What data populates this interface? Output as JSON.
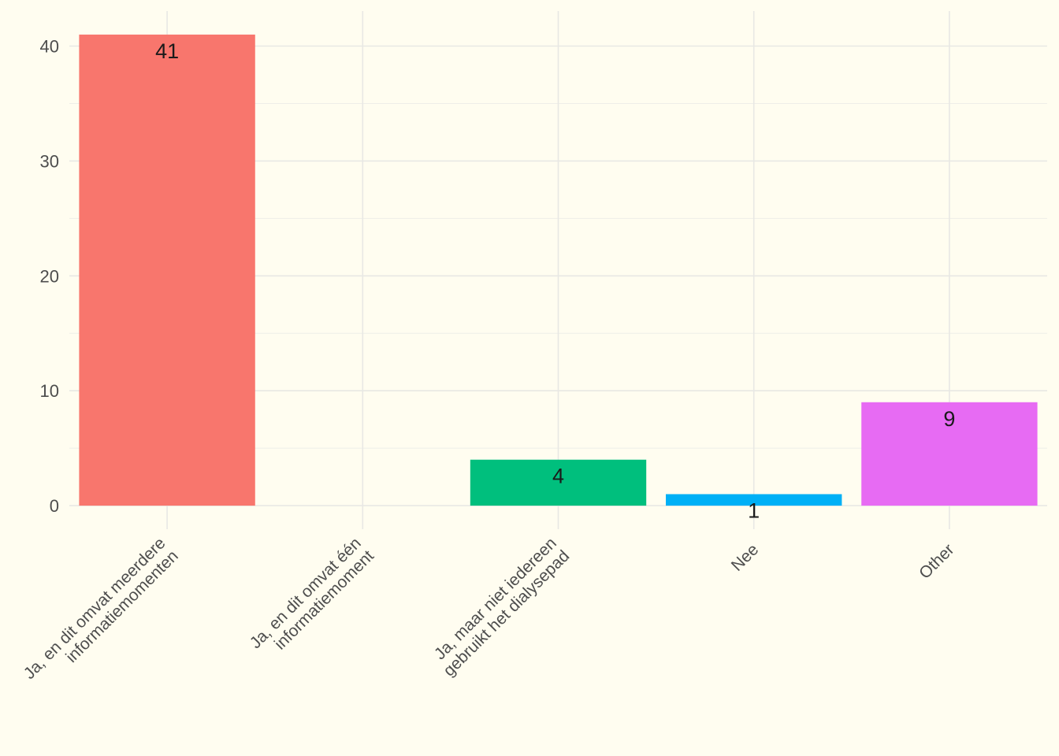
{
  "chart_data": {
    "type": "bar",
    "title": "",
    "xlabel": "",
    "ylabel": "",
    "categories": [
      [
        "Ja, en dit omvat meerdere",
        "informatiemomenten"
      ],
      [
        "Ja, en dit omvat één",
        "informatiemoment"
      ],
      [
        "Ja, maar niet iedereen",
        "gebruikt het dialysepad"
      ],
      [
        "Nee"
      ],
      [
        "Other"
      ]
    ],
    "values": [
      41,
      0,
      4,
      1,
      9
    ],
    "data_labels": [
      "41",
      "",
      "4",
      "1",
      "9"
    ],
    "colors": [
      "#f8766d",
      "#a3a500",
      "#00bf7d",
      "#00b0f6",
      "#e76bf3"
    ],
    "ylim": [
      -2.05,
      43.05
    ],
    "yticks": [
      0,
      10,
      20,
      30,
      40
    ],
    "grid": true,
    "legend": "none"
  }
}
